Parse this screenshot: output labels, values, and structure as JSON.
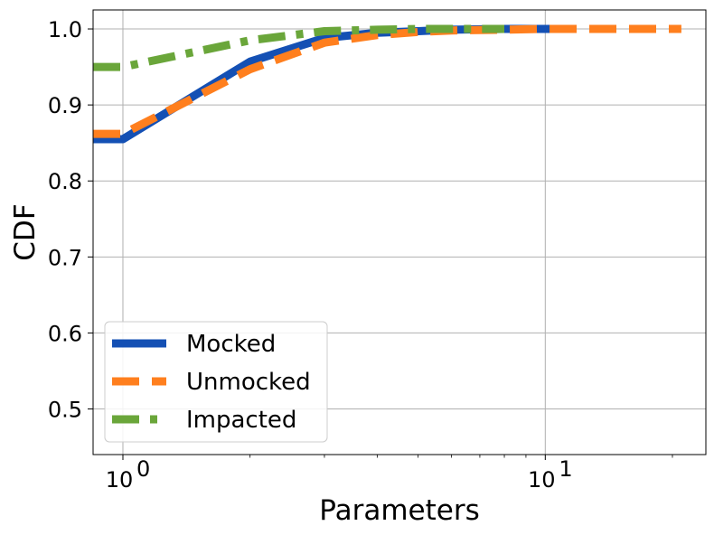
{
  "chart_data": {
    "type": "line",
    "xlabel": "Parameters",
    "ylabel": "CDF",
    "xscale": "log",
    "xlim": [
      0.85,
      24
    ],
    "ylim": [
      0.44,
      1.025
    ],
    "grid": true,
    "legend_position": "bottom-left",
    "x_ticks": [
      {
        "value": 1,
        "base": "10",
        "exp": "0"
      },
      {
        "value": 10,
        "base": "10",
        "exp": "1"
      }
    ],
    "y_ticks": [
      {
        "value": 0.5,
        "label": "0.5"
      },
      {
        "value": 0.6,
        "label": "0.6"
      },
      {
        "value": 0.7,
        "label": "0.7"
      },
      {
        "value": 0.8,
        "label": "0.8"
      },
      {
        "value": 0.9,
        "label": "0.9"
      },
      {
        "value": 1.0,
        "label": "1.0"
      }
    ],
    "series": [
      {
        "name": "Mocked",
        "color": "#1450b4",
        "style": "solid",
        "x": [
          0.85,
          1,
          2,
          3,
          4,
          5,
          6,
          8,
          11
        ],
        "y": [
          0.855,
          0.855,
          0.957,
          0.988,
          0.995,
          0.997,
          0.999,
          1.0,
          1.0
        ]
      },
      {
        "name": "Unmocked",
        "color": "#ff7f1e",
        "style": "dashed",
        "x": [
          0.85,
          1,
          2,
          3,
          4,
          5,
          6,
          8,
          10,
          15,
          21
        ],
        "y": [
          0.862,
          0.862,
          0.947,
          0.982,
          0.992,
          0.996,
          0.998,
          0.999,
          1.0,
          1.0,
          1.0
        ]
      },
      {
        "name": "Impacted",
        "color": "#6aa63a",
        "style": "dashdot",
        "x": [
          0.85,
          1,
          2,
          3,
          4,
          5,
          6,
          8
        ],
        "y": [
          0.95,
          0.95,
          0.985,
          0.997,
          0.999,
          1.0,
          1.0,
          1.0
        ]
      }
    ]
  }
}
